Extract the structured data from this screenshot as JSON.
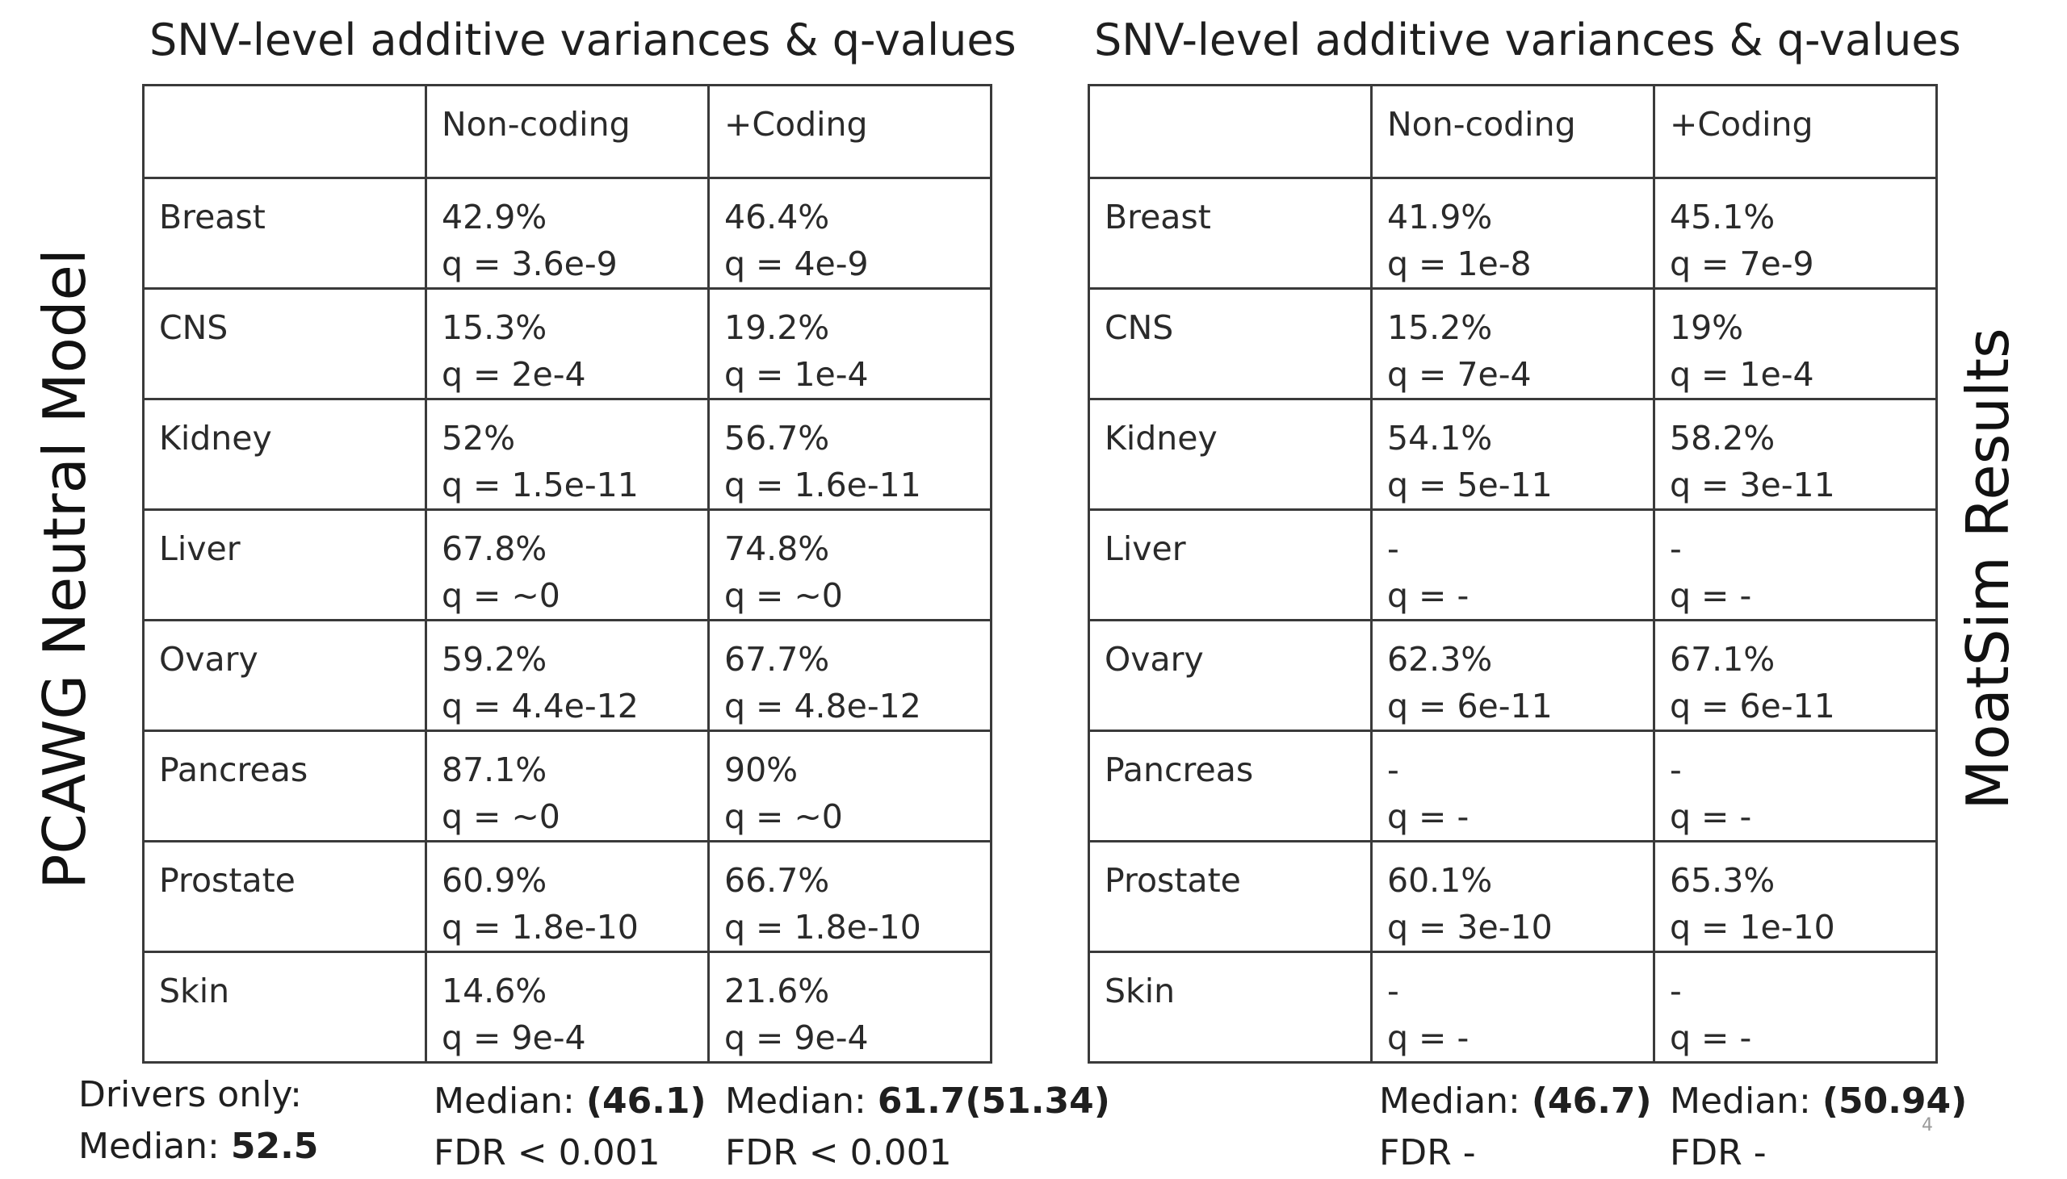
{
  "left_panel": {
    "title": "SNV-level additive variances & q-values",
    "side_label": "PCAWG Neutral Model",
    "columns": [
      "",
      "Non-coding",
      "+Coding"
    ],
    "rows": [
      {
        "tissue": "Breast",
        "noncoding_pct": "42.9%",
        "noncoding_q": "q = 3.6e-9",
        "coding_pct": "46.4%",
        "coding_q": "q = 4e-9"
      },
      {
        "tissue": "CNS",
        "noncoding_pct": "15.3%",
        "noncoding_q": "q = 2e-4",
        "coding_pct": "19.2%",
        "coding_q": "q = 1e-4"
      },
      {
        "tissue": "Kidney",
        "noncoding_pct": "52%",
        "noncoding_q": "q = 1.5e-11",
        "coding_pct": "56.7%",
        "coding_q": "q = 1.6e-11"
      },
      {
        "tissue": "Liver",
        "noncoding_pct": "67.8%",
        "noncoding_q": "q = ~0",
        "coding_pct": "74.8%",
        "coding_q": "q = ~0"
      },
      {
        "tissue": "Ovary",
        "noncoding_pct": "59.2%",
        "noncoding_q": "q = 4.4e-12",
        "coding_pct": "67.7%",
        "coding_q": "q = 4.8e-12"
      },
      {
        "tissue": "Pancreas",
        "noncoding_pct": "87.1%",
        "noncoding_q": "q = ~0",
        "coding_pct": "90%",
        "coding_q": "q = ~0"
      },
      {
        "tissue": "Prostate",
        "noncoding_pct": "60.9%",
        "noncoding_q": "q = 1.8e-10",
        "coding_pct": "66.7%",
        "coding_q": "q = 1.8e-10"
      },
      {
        "tissue": "Skin",
        "noncoding_pct": "14.6%",
        "noncoding_q": "q = 9e-4",
        "coding_pct": "21.6%",
        "coding_q": "q = 9e-4"
      }
    ],
    "footer": {
      "drivers_label": "Drivers only:",
      "drivers_median_label": "Median: ",
      "drivers_median_value": "52.5",
      "noncoding_median_label": "Median: ",
      "noncoding_median_value": "(46.1)",
      "noncoding_fdr": "FDR < 0.001",
      "coding_median_label": "Median: ",
      "coding_median_value": "61.7(51.34)",
      "coding_fdr": "FDR < 0.001"
    }
  },
  "right_panel": {
    "title": "SNV-level additive variances & q-values",
    "side_label": "MoatSim Results",
    "columns": [
      "",
      "Non-coding",
      "+Coding"
    ],
    "rows": [
      {
        "tissue": "Breast",
        "noncoding_pct": "41.9%",
        "noncoding_q": "q = 1e-8",
        "coding_pct": "45.1%",
        "coding_q": "q = 7e-9"
      },
      {
        "tissue": "CNS",
        "noncoding_pct": "15.2%",
        "noncoding_q": "q = 7e-4",
        "coding_pct": "19%",
        "coding_q": "q = 1e-4"
      },
      {
        "tissue": "Kidney",
        "noncoding_pct": "54.1%",
        "noncoding_q": "q = 5e-11",
        "coding_pct": "58.2%",
        "coding_q": "q = 3e-11"
      },
      {
        "tissue": "Liver",
        "noncoding_pct": "-",
        "noncoding_q": "q = -",
        "coding_pct": "-",
        "coding_q": "q = -"
      },
      {
        "tissue": "Ovary",
        "noncoding_pct": "62.3%",
        "noncoding_q": "q = 6e-11",
        "coding_pct": "67.1%",
        "coding_q": "q = 6e-11"
      },
      {
        "tissue": "Pancreas",
        "noncoding_pct": "-",
        "noncoding_q": "q = -",
        "coding_pct": "-",
        "coding_q": "q = -"
      },
      {
        "tissue": "Prostate",
        "noncoding_pct": "60.1%",
        "noncoding_q": "q = 3e-10",
        "coding_pct": "65.3%",
        "coding_q": "q = 1e-10"
      },
      {
        "tissue": "Skin",
        "noncoding_pct": "-",
        "noncoding_q": "q = -",
        "coding_pct": "-",
        "coding_q": "q = -"
      }
    ],
    "footer": {
      "noncoding_median_label": "Median: ",
      "noncoding_median_value": "(46.7)",
      "noncoding_fdr": "FDR -",
      "coding_median_label": "Median: ",
      "coding_median_value": "(50.94)",
      "coding_fdr": "FDR -"
    }
  },
  "page_number": "4"
}
